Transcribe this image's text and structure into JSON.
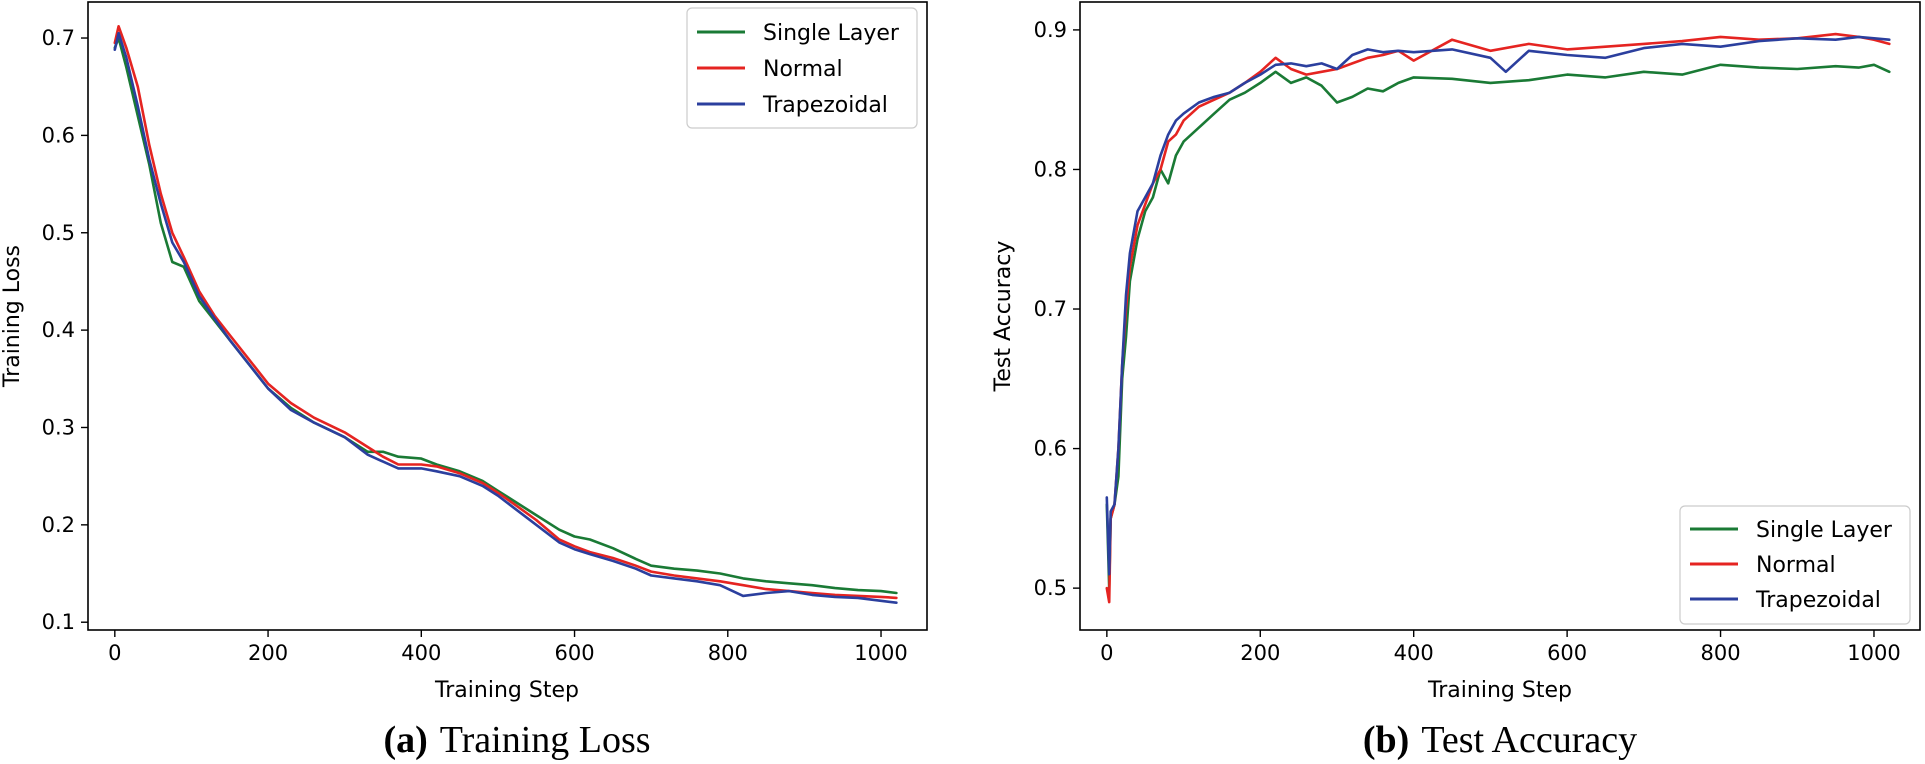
{
  "colors": {
    "single_layer": "#1a7a35",
    "normal": "#e52421",
    "trapezoidal": "#2b3f9e"
  },
  "chart_data": [
    {
      "type": "line",
      "title": "",
      "caption_label": "(a)",
      "caption_title": "Training Loss",
      "xlabel": "Training Step",
      "ylabel": "Training Loss",
      "xlim": [
        -35,
        1060
      ],
      "ylim": [
        0.092,
        0.737
      ],
      "xticks": [
        0,
        200,
        400,
        600,
        800,
        1000
      ],
      "yticks": [
        0.1,
        0.2,
        0.3,
        0.4,
        0.5,
        0.6,
        0.7
      ],
      "legend_position": "top-right",
      "series": [
        {
          "name": "Single Layer",
          "color_key": "single_layer",
          "x": [
            0,
            5,
            15,
            30,
            45,
            60,
            75,
            90,
            110,
            130,
            150,
            175,
            200,
            230,
            260,
            300,
            330,
            350,
            370,
            400,
            420,
            450,
            480,
            500,
            520,
            550,
            580,
            600,
            620,
            650,
            680,
            700,
            730,
            760,
            790,
            820,
            850,
            880,
            910,
            940,
            970,
            1000,
            1020
          ],
          "y": [
            0.69,
            0.7,
            0.67,
            0.62,
            0.57,
            0.51,
            0.47,
            0.465,
            0.43,
            0.41,
            0.39,
            0.365,
            0.34,
            0.32,
            0.305,
            0.29,
            0.275,
            0.275,
            0.27,
            0.268,
            0.262,
            0.255,
            0.245,
            0.235,
            0.225,
            0.21,
            0.195,
            0.188,
            0.185,
            0.176,
            0.165,
            0.158,
            0.155,
            0.153,
            0.15,
            0.145,
            0.142,
            0.14,
            0.138,
            0.135,
            0.133,
            0.132,
            0.13
          ]
        },
        {
          "name": "Normal",
          "color_key": "normal",
          "x": [
            0,
            5,
            15,
            30,
            45,
            60,
            75,
            90,
            110,
            130,
            150,
            175,
            200,
            230,
            260,
            300,
            330,
            350,
            370,
            400,
            420,
            450,
            480,
            500,
            520,
            550,
            580,
            600,
            620,
            650,
            680,
            700,
            730,
            760,
            790,
            820,
            850,
            880,
            910,
            940,
            970,
            1000,
            1020
          ],
          "y": [
            0.695,
            0.712,
            0.69,
            0.65,
            0.59,
            0.54,
            0.5,
            0.475,
            0.44,
            0.415,
            0.395,
            0.37,
            0.345,
            0.325,
            0.31,
            0.295,
            0.28,
            0.27,
            0.262,
            0.262,
            0.26,
            0.253,
            0.243,
            0.233,
            0.222,
            0.205,
            0.185,
            0.178,
            0.172,
            0.166,
            0.158,
            0.152,
            0.148,
            0.145,
            0.142,
            0.138,
            0.134,
            0.132,
            0.13,
            0.128,
            0.127,
            0.126,
            0.125
          ]
        },
        {
          "name": "Trapezoidal",
          "color_key": "trapezoidal",
          "x": [
            0,
            5,
            15,
            30,
            45,
            60,
            75,
            90,
            110,
            130,
            150,
            175,
            200,
            230,
            260,
            300,
            330,
            350,
            370,
            400,
            420,
            450,
            480,
            500,
            520,
            550,
            580,
            600,
            620,
            650,
            680,
            700,
            730,
            760,
            790,
            820,
            850,
            880,
            910,
            940,
            970,
            1000,
            1020
          ],
          "y": [
            0.688,
            0.705,
            0.68,
            0.63,
            0.575,
            0.53,
            0.49,
            0.47,
            0.435,
            0.412,
            0.39,
            0.365,
            0.34,
            0.318,
            0.305,
            0.29,
            0.272,
            0.265,
            0.258,
            0.258,
            0.255,
            0.25,
            0.24,
            0.23,
            0.218,
            0.2,
            0.182,
            0.175,
            0.17,
            0.163,
            0.155,
            0.148,
            0.145,
            0.142,
            0.138,
            0.127,
            0.13,
            0.132,
            0.128,
            0.126,
            0.125,
            0.122,
            0.12
          ]
        }
      ]
    },
    {
      "type": "line",
      "title": "",
      "caption_label": "(b)",
      "caption_title": "Test Accuracy",
      "xlabel": "Training Step",
      "ylabel": "Test Accuracy",
      "xlim": [
        -35,
        1060
      ],
      "ylim": [
        0.47,
        0.92
      ],
      "xticks": [
        0,
        200,
        400,
        600,
        800,
        1000
      ],
      "yticks": [
        0.5,
        0.6,
        0.7,
        0.8,
        0.9
      ],
      "legend_position": "bottom-right",
      "series": [
        {
          "name": "Single Layer",
          "color_key": "single_layer",
          "x": [
            0,
            3,
            5,
            10,
            15,
            20,
            25,
            30,
            40,
            50,
            60,
            70,
            80,
            90,
            100,
            120,
            140,
            160,
            180,
            200,
            220,
            240,
            260,
            280,
            300,
            320,
            340,
            360,
            380,
            400,
            450,
            500,
            550,
            600,
            650,
            700,
            750,
            800,
            850,
            900,
            950,
            980,
            1000,
            1020
          ],
          "y": [
            0.56,
            0.5,
            0.55,
            0.56,
            0.58,
            0.65,
            0.68,
            0.72,
            0.75,
            0.77,
            0.78,
            0.8,
            0.79,
            0.81,
            0.82,
            0.83,
            0.84,
            0.85,
            0.855,
            0.862,
            0.87,
            0.862,
            0.866,
            0.86,
            0.848,
            0.852,
            0.858,
            0.856,
            0.862,
            0.866,
            0.865,
            0.862,
            0.864,
            0.868,
            0.866,
            0.87,
            0.868,
            0.875,
            0.873,
            0.872,
            0.874,
            0.873,
            0.875,
            0.87
          ]
        },
        {
          "name": "Normal",
          "color_key": "normal",
          "x": [
            0,
            3,
            5,
            10,
            15,
            20,
            25,
            30,
            40,
            50,
            60,
            70,
            80,
            90,
            100,
            120,
            140,
            160,
            180,
            200,
            220,
            240,
            260,
            280,
            300,
            320,
            340,
            360,
            380,
            400,
            450,
            500,
            550,
            600,
            650,
            700,
            750,
            800,
            850,
            900,
            950,
            980,
            1000,
            1020
          ],
          "y": [
            0.5,
            0.49,
            0.55,
            0.56,
            0.6,
            0.66,
            0.7,
            0.73,
            0.76,
            0.775,
            0.79,
            0.8,
            0.82,
            0.825,
            0.835,
            0.845,
            0.85,
            0.855,
            0.862,
            0.87,
            0.88,
            0.872,
            0.868,
            0.87,
            0.872,
            0.876,
            0.88,
            0.882,
            0.885,
            0.878,
            0.893,
            0.885,
            0.89,
            0.886,
            0.888,
            0.89,
            0.892,
            0.895,
            0.893,
            0.894,
            0.897,
            0.895,
            0.893,
            0.89
          ]
        },
        {
          "name": "Trapezoidal",
          "color_key": "trapezoidal",
          "x": [
            0,
            3,
            5,
            10,
            15,
            20,
            25,
            30,
            40,
            50,
            60,
            70,
            80,
            90,
            100,
            120,
            140,
            160,
            180,
            200,
            220,
            240,
            260,
            280,
            300,
            320,
            340,
            360,
            380,
            400,
            450,
            500,
            520,
            550,
            600,
            650,
            700,
            750,
            800,
            850,
            900,
            950,
            980,
            1000,
            1020
          ],
          "y": [
            0.565,
            0.51,
            0.555,
            0.56,
            0.6,
            0.66,
            0.71,
            0.74,
            0.77,
            0.78,
            0.79,
            0.81,
            0.825,
            0.835,
            0.84,
            0.848,
            0.852,
            0.855,
            0.862,
            0.868,
            0.875,
            0.876,
            0.874,
            0.876,
            0.872,
            0.882,
            0.886,
            0.884,
            0.885,
            0.884,
            0.886,
            0.88,
            0.87,
            0.885,
            0.882,
            0.88,
            0.887,
            0.89,
            0.888,
            0.892,
            0.894,
            0.893,
            0.895,
            0.894,
            0.893
          ]
        }
      ]
    }
  ]
}
